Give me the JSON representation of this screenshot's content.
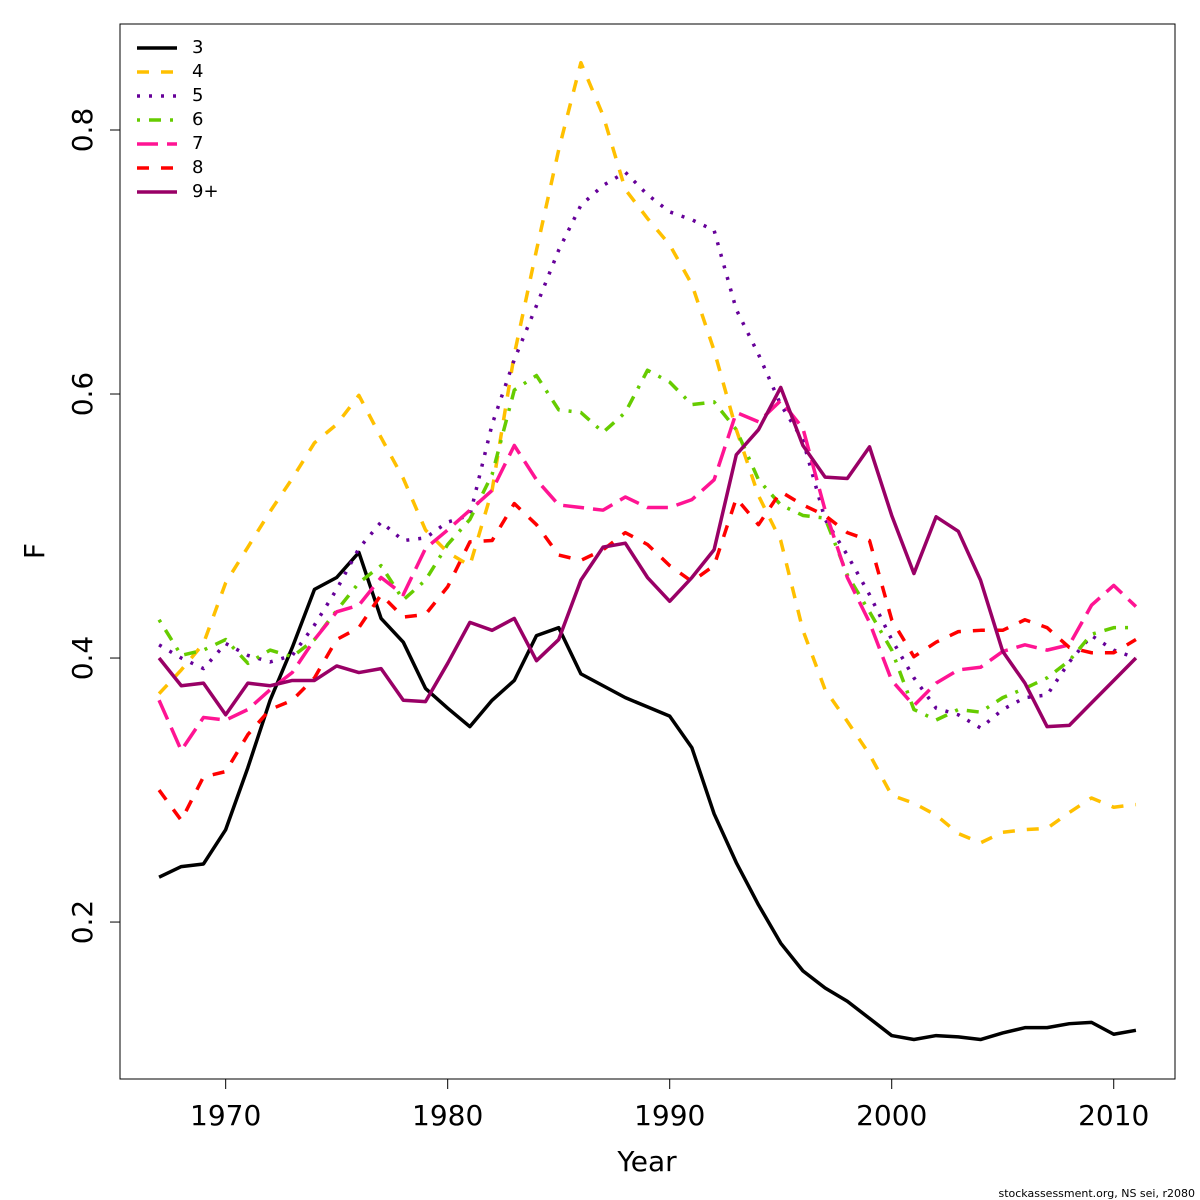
{
  "chart_data": {
    "type": "line",
    "xlabel": "Year",
    "ylabel": "F",
    "footnote": "stockassessment.org, NS sei, r2080",
    "x": [
      1967,
      1968,
      1969,
      1970,
      1971,
      1972,
      1973,
      1974,
      1975,
      1976,
      1977,
      1978,
      1979,
      1980,
      1981,
      1982,
      1983,
      1984,
      1985,
      1986,
      1987,
      1988,
      1989,
      1990,
      1991,
      1992,
      1993,
      1994,
      1995,
      1996,
      1997,
      1998,
      1999,
      2000,
      2001,
      2002,
      2003,
      2004,
      2005,
      2006,
      2007,
      2008,
      2009,
      2010,
      2011
    ],
    "xlim": [
      1965.24,
      2012.76
    ],
    "xticks": [
      1970,
      1980,
      1990,
      2000,
      2010
    ],
    "ylim": [
      0.0811,
      0.8803
    ],
    "yticks": [
      0.2,
      0.4,
      0.6,
      0.8
    ],
    "grid": false,
    "legend": "top-left",
    "series": [
      {
        "name": "3",
        "color": "#000000",
        "linestyle": "solid",
        "values": [
          0.234,
          0.242,
          0.244,
          0.27,
          0.317,
          0.368,
          0.408,
          0.452,
          0.461,
          0.48,
          0.43,
          0.412,
          0.377,
          0.362,
          0.348,
          0.368,
          0.383,
          0.417,
          0.423,
          0.388,
          0.379,
          0.37,
          0.363,
          0.356,
          0.332,
          0.282,
          0.245,
          0.213,
          0.184,
          0.163,
          0.15,
          0.14,
          0.127,
          0.114,
          0.111,
          0.114,
          0.113,
          0.111,
          0.116,
          0.12,
          0.12,
          0.123,
          0.124,
          0.115,
          0.118
        ]
      },
      {
        "name": "4",
        "color": "#ffc000",
        "linestyle": "dashed",
        "values": [
          0.373,
          0.391,
          0.411,
          0.457,
          0.484,
          0.511,
          0.536,
          0.563,
          0.577,
          0.599,
          0.567,
          0.536,
          0.497,
          0.48,
          0.47,
          0.527,
          0.63,
          0.709,
          0.785,
          0.851,
          0.811,
          0.755,
          0.733,
          0.713,
          0.683,
          0.633,
          0.573,
          0.523,
          0.489,
          0.421,
          0.376,
          0.352,
          0.327,
          0.296,
          0.29,
          0.281,
          0.267,
          0.26,
          0.268,
          0.27,
          0.271,
          0.283,
          0.294,
          0.287,
          0.289
        ]
      },
      {
        "name": "5",
        "color": "#660099",
        "linestyle": "dotted",
        "values": [
          0.41,
          0.4,
          0.392,
          0.411,
          0.402,
          0.397,
          0.402,
          0.425,
          0.452,
          0.483,
          0.503,
          0.489,
          0.491,
          0.503,
          0.508,
          0.577,
          0.626,
          0.667,
          0.709,
          0.743,
          0.758,
          0.768,
          0.751,
          0.738,
          0.732,
          0.724,
          0.664,
          0.63,
          0.592,
          0.565,
          0.505,
          0.478,
          0.448,
          0.414,
          0.385,
          0.362,
          0.357,
          0.347,
          0.361,
          0.37,
          0.372,
          0.397,
          0.417,
          0.406,
          0.4
        ]
      },
      {
        "name": "6",
        "color": "#66cc00",
        "linestyle": "dotdash",
        "values": [
          0.429,
          0.402,
          0.406,
          0.414,
          0.396,
          0.406,
          0.401,
          0.414,
          0.436,
          0.457,
          0.47,
          0.444,
          0.459,
          0.486,
          0.505,
          0.539,
          0.603,
          0.614,
          0.588,
          0.586,
          0.571,
          0.586,
          0.618,
          0.609,
          0.592,
          0.594,
          0.573,
          0.535,
          0.516,
          0.508,
          0.506,
          0.463,
          0.435,
          0.406,
          0.361,
          0.353,
          0.361,
          0.359,
          0.37,
          0.377,
          0.385,
          0.398,
          0.418,
          0.423,
          0.423
        ]
      },
      {
        "name": "7",
        "color": "#ff1493",
        "linestyle": "longdash",
        "values": [
          0.368,
          0.33,
          0.355,
          0.353,
          0.361,
          0.376,
          0.389,
          0.414,
          0.435,
          0.44,
          0.461,
          0.448,
          0.483,
          0.497,
          0.512,
          0.527,
          0.561,
          0.535,
          0.516,
          0.514,
          0.512,
          0.522,
          0.514,
          0.514,
          0.52,
          0.535,
          0.586,
          0.579,
          0.595,
          0.574,
          0.512,
          0.461,
          0.427,
          0.383,
          0.364,
          0.381,
          0.391,
          0.393,
          0.405,
          0.41,
          0.406,
          0.41,
          0.44,
          0.455,
          0.439
        ]
      },
      {
        "name": "8",
        "color": "#ff0000",
        "linestyle": "dashed",
        "values": [
          0.3,
          0.277,
          0.31,
          0.314,
          0.342,
          0.361,
          0.368,
          0.385,
          0.414,
          0.423,
          0.448,
          0.431,
          0.433,
          0.454,
          0.488,
          0.489,
          0.517,
          0.501,
          0.478,
          0.474,
          0.482,
          0.495,
          0.486,
          0.47,
          0.458,
          0.47,
          0.521,
          0.501,
          0.526,
          0.516,
          0.508,
          0.495,
          0.489,
          0.429,
          0.401,
          0.412,
          0.42,
          0.421,
          0.421,
          0.429,
          0.423,
          0.408,
          0.404,
          0.404,
          0.414
        ]
      },
      {
        "name": "9+",
        "color": "#990066",
        "linestyle": "solid",
        "values": [
          0.4,
          0.379,
          0.381,
          0.357,
          0.381,
          0.379,
          0.383,
          0.383,
          0.394,
          0.389,
          0.392,
          0.368,
          0.367,
          0.396,
          0.427,
          0.421,
          0.43,
          0.398,
          0.414,
          0.459,
          0.484,
          0.487,
          0.461,
          0.443,
          0.461,
          0.482,
          0.554,
          0.573,
          0.605,
          0.561,
          0.537,
          0.536,
          0.56,
          0.508,
          0.464,
          0.507,
          0.496,
          0.459,
          0.405,
          0.381,
          0.348,
          0.349,
          0.366,
          0.383,
          0.4
        ]
      }
    ]
  }
}
